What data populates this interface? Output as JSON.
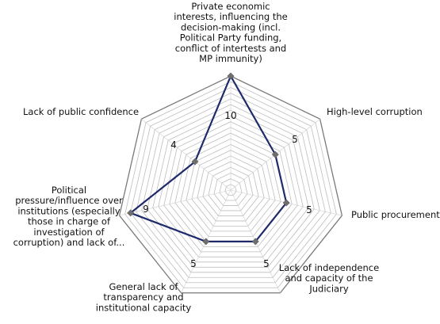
{
  "chart_data": {
    "type": "radar",
    "title": "",
    "categories": [
      "Private economic interests, influencing the decision-making (incl. Political Party funding, conflict of intertests and MP immunity)",
      "High-level corruption",
      "Public procurement",
      "Lack of independence and capacity of the Judiciary",
      "General lack of transparency and institutional capacity",
      "Political pressure/influence over institutions (especially those in charge of investigation of corruption) and lack of...",
      "Lack of public confidence"
    ],
    "category_label_lines": [
      [
        "Private economic",
        "interests, influencing the",
        "decision-making (incl.",
        "Political Party funding,",
        "conflict of intertests and",
        "MP immunity)"
      ],
      [
        "High-level corruption"
      ],
      [
        "Public procurement"
      ],
      [
        "Lack of independence",
        "and capacity of the",
        "Judiciary"
      ],
      [
        "General lack of",
        "transparency and",
        "institutional capacity"
      ],
      [
        "Political",
        "pressure/influence over",
        "institutions (especially",
        "those in charge of",
        "investigation of",
        "corruption) and lack of..."
      ],
      [
        "Lack of public confidence"
      ]
    ],
    "series": [
      {
        "values": [
          10,
          5,
          5,
          5,
          5,
          9,
          4
        ]
      }
    ],
    "data_labels": [
      "10",
      "5",
      "5",
      "5",
      "5",
      "9",
      "4"
    ],
    "rlim": [
      0,
      10
    ],
    "grid_rings": 20,
    "grid": true,
    "legend": "none",
    "colors": {
      "line": "#1f2a6b",
      "marker": "#6e6e6e",
      "grid": "#bdbdbd",
      "outer": "#7a7a7a",
      "spoke": "#d0d0d0"
    }
  }
}
